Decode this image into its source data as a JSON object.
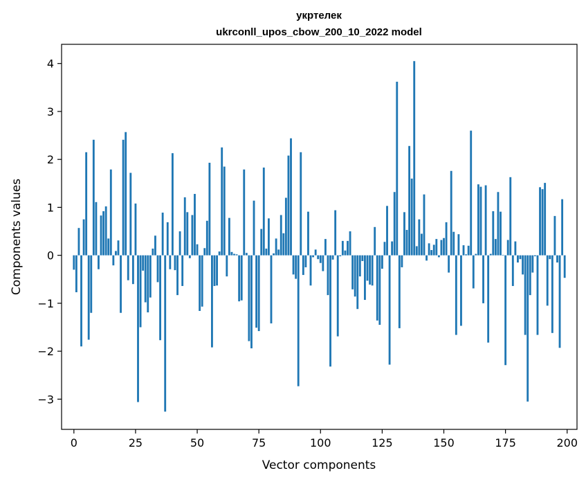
{
  "chart_data": {
    "type": "bar",
    "title": "укртелек",
    "subtitle": "ukrconll_upos_cbow_200_10_2022 model",
    "xlabel": "Vector components",
    "ylabel": "Components values",
    "xlim": [
      -5,
      204
    ],
    "ylim": [
      -3.63,
      4.4
    ],
    "xticks": [
      0,
      25,
      50,
      75,
      100,
      125,
      150,
      175,
      200
    ],
    "yticks": [
      -3,
      -2,
      -1,
      0,
      1,
      2,
      3,
      4
    ],
    "grid": false,
    "bar_color": "#1f77b4",
    "values": [
      -0.3,
      -0.77,
      0.57,
      -1.9,
      0.75,
      2.15,
      -1.76,
      -1.2,
      2.41,
      1.11,
      -0.29,
      0.83,
      0.92,
      1.02,
      0.35,
      1.79,
      -0.21,
      0.09,
      0.31,
      -1.2,
      2.41,
      2.57,
      -0.52,
      1.72,
      -0.6,
      1.08,
      -3.06,
      -1.5,
      -0.32,
      -0.98,
      -1.19,
      -0.88,
      0.14,
      0.41,
      -0.56,
      -1.77,
      0.89,
      -3.26,
      0.69,
      -0.29,
      2.13,
      -0.31,
      -0.83,
      0.5,
      -0.64,
      1.21,
      0.9,
      -0.06,
      0.84,
      1.28,
      0.23,
      -1.16,
      -1.07,
      0.15,
      0.72,
      1.93,
      -1.92,
      -0.64,
      -0.63,
      0.08,
      2.25,
      1.85,
      -0.44,
      0.78,
      0.07,
      0.03,
      0.02,
      -0.96,
      -0.94,
      1.79,
      0.05,
      -1.79,
      -1.94,
      1.14,
      -1.51,
      -1.58,
      0.55,
      1.83,
      0.14,
      0.77,
      -1.42,
      0.04,
      0.35,
      0.12,
      0.84,
      0.46,
      1.2,
      2.08,
      2.44,
      -0.4,
      -0.49,
      -2.73,
      2.15,
      -0.41,
      -0.25,
      0.91,
      -0.63,
      -0.04,
      0.12,
      -0.08,
      -0.16,
      -0.33,
      0.34,
      -0.83,
      -2.32,
      -0.09,
      0.94,
      -1.69,
      -0.02,
      0.3,
      0.1,
      0.3,
      0.5,
      -0.71,
      -0.86,
      -1.12,
      -0.44,
      -0.12,
      -0.93,
      -0.53,
      -0.61,
      -0.63,
      0.59,
      -1.36,
      -1.45,
      -0.28,
      0.28,
      1.03,
      -2.28,
      0.29,
      1.32,
      3.62,
      -1.52,
      -0.25,
      0.9,
      0.53,
      2.28,
      1.6,
      4.05,
      0.19,
      0.75,
      0.45,
      1.27,
      -0.11,
      0.25,
      0.11,
      0.22,
      0.34,
      -0.04,
      0.32,
      0.36,
      0.69,
      -0.36,
      1.76,
      0.49,
      -1.66,
      0.44,
      -1.47,
      0.21,
      0.02,
      0.2,
      2.6,
      -0.69,
      0.03,
      1.48,
      1.43,
      -1.0,
      1.46,
      -1.82,
      0.03,
      0.92,
      0.34,
      1.32,
      0.91,
      0.01,
      -2.29,
      0.32,
      1.63,
      -0.64,
      0.29,
      -0.15,
      -0.08,
      -0.4,
      -1.66,
      -3.05,
      -0.83,
      -0.36,
      -0.02,
      -1.66,
      1.42,
      1.38,
      1.51,
      -1.05,
      -0.08,
      -1.62,
      0.82,
      -0.15,
      -1.93,
      1.17,
      -0.47
    ]
  }
}
